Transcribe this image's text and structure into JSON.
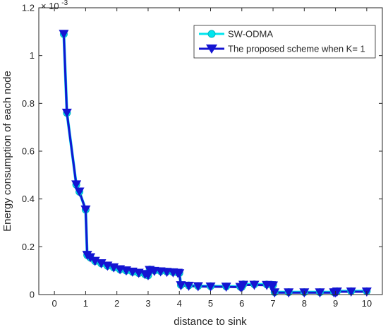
{
  "chart_data": {
    "type": "line",
    "title": "",
    "xlabel": "distance to sink",
    "ylabel": "Energy consumption of each node",
    "y_exponent_label": "× 10",
    "y_exponent_power": "-3",
    "xlim": [
      -0.5,
      10.5
    ],
    "ylim": [
      0,
      1.2
    ],
    "xticks": [
      "0",
      "1",
      "2",
      "3",
      "4",
      "5",
      "6",
      "7",
      "8",
      "9",
      "10"
    ],
    "yticks": [
      "0",
      "0.2",
      "0.4",
      "0.6",
      "0.8",
      "1",
      "1.2"
    ],
    "grid": false,
    "legend_position": "top-right",
    "series": [
      {
        "name": "SW-ODMA",
        "color": "#00e5ee",
        "marker": "circle",
        "x": [
          0.3,
          0.4,
          0.7,
          0.8,
          1.0,
          1.05,
          1.15,
          1.3,
          1.5,
          1.7,
          1.9,
          2.1,
          2.3,
          2.5,
          2.7,
          2.9,
          3.0,
          3.05,
          3.2,
          3.4,
          3.6,
          3.8,
          3.95,
          4.0,
          4.05,
          4.3,
          4.6,
          5.0,
          5.5,
          5.95,
          6.0,
          6.05,
          6.4,
          6.8,
          6.95,
          7.0,
          7.05,
          7.5,
          8.0,
          8.5,
          8.95,
          9.0,
          9.05,
          9.5,
          10.0
        ],
        "values": [
          1.09,
          0.76,
          0.46,
          0.43,
          0.355,
          0.165,
          0.155,
          0.14,
          0.13,
          0.12,
          0.113,
          0.105,
          0.1,
          0.095,
          0.09,
          0.085,
          0.08,
          0.105,
          0.1,
          0.098,
          0.096,
          0.094,
          0.092,
          0.09,
          0.04,
          0.038,
          0.036,
          0.035,
          0.034,
          0.033,
          0.032,
          0.043,
          0.043,
          0.042,
          0.041,
          0.04,
          0.01,
          0.01,
          0.01,
          0.01,
          0.01,
          0.01,
          0.014,
          0.014,
          0.014
        ]
      },
      {
        "name": "The proposed scheme when K= 1",
        "color": "#1414d2",
        "marker": "triangle-down",
        "x": [
          0.3,
          0.4,
          0.7,
          0.8,
          1.0,
          1.05,
          1.15,
          1.3,
          1.5,
          1.7,
          1.9,
          2.1,
          2.3,
          2.5,
          2.7,
          2.9,
          3.0,
          3.05,
          3.2,
          3.4,
          3.6,
          3.8,
          3.95,
          4.0,
          4.05,
          4.3,
          4.6,
          5.0,
          5.5,
          5.95,
          6.0,
          6.05,
          6.4,
          6.8,
          6.95,
          7.0,
          7.05,
          7.5,
          8.0,
          8.5,
          8.95,
          9.0,
          9.05,
          9.5,
          10.0
        ],
        "values": [
          1.09,
          0.76,
          0.46,
          0.43,
          0.355,
          0.165,
          0.155,
          0.14,
          0.13,
          0.12,
          0.113,
          0.105,
          0.1,
          0.095,
          0.09,
          0.085,
          0.08,
          0.102,
          0.098,
          0.096,
          0.094,
          0.092,
          0.09,
          0.088,
          0.038,
          0.036,
          0.034,
          0.033,
          0.032,
          0.031,
          0.03,
          0.04,
          0.04,
          0.039,
          0.038,
          0.037,
          0.008,
          0.008,
          0.008,
          0.008,
          0.008,
          0.008,
          0.012,
          0.012,
          0.012
        ]
      }
    ]
  }
}
